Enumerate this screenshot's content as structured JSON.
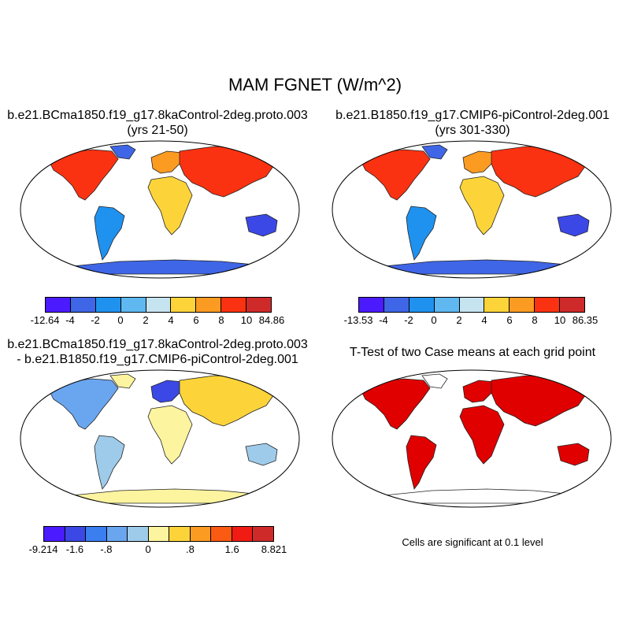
{
  "figure": {
    "title": "MAM FGNET (W/m^2)"
  },
  "panels": [
    {
      "id": "case1",
      "title_lines": [
        "b.e21.BCma1850.f19_g17.8kaControl-2deg.proto.003",
        "(yrs 21-50)"
      ],
      "colorbar": {
        "colors": [
          "#4b1aff",
          "#3f66e6",
          "#1f92f0",
          "#5fb8f0",
          "#c6e4f0",
          "#fcd43a",
          "#fb9b22",
          "#fb3211",
          "#cf2a2a"
        ],
        "labels": [
          "-12.64",
          "-4",
          "-2",
          "0",
          "2",
          "4",
          "6",
          "8",
          "10",
          "84.86"
        ]
      }
    },
    {
      "id": "case2",
      "title_lines": [
        "b.e21.B1850.f19_g17.CMIP6-piControl-2deg.001",
        "(yrs 301-330)"
      ],
      "colorbar": {
        "colors": [
          "#4b1aff",
          "#3f66e6",
          "#1f92f0",
          "#5fb8f0",
          "#c6e4f0",
          "#fcd43a",
          "#fb9b22",
          "#fb3211",
          "#cf2a2a"
        ],
        "labels": [
          "-13.53",
          "-4",
          "-2",
          "0",
          "2",
          "4",
          "6",
          "8",
          "10",
          "86.35"
        ]
      }
    },
    {
      "id": "diff",
      "title_lines": [
        "b.e21.BCma1850.f19_g17.8kaControl-2deg.proto.003",
        "- b.e21.B1850.f19_g17.CMIP6-piControl-2deg.001"
      ],
      "colorbar": {
        "colors": [
          "#4b1aff",
          "#3b48e6",
          "#3a7ef0",
          "#6aa6f0",
          "#9fcbea",
          "#fdf4a0",
          "#fcd43a",
          "#fb9b22",
          "#fb5a12",
          "#f01c14",
          "#cf2a2a"
        ],
        "labels": [
          "-9.214",
          "-1.6",
          "-.8",
          "0",
          ".8",
          "1.6",
          "8.821"
        ]
      }
    },
    {
      "id": "ttest",
      "title_lines": [
        "T-Test of two Case means at each grid point"
      ],
      "note": "Cells are significant at 0.1 level"
    }
  ]
}
